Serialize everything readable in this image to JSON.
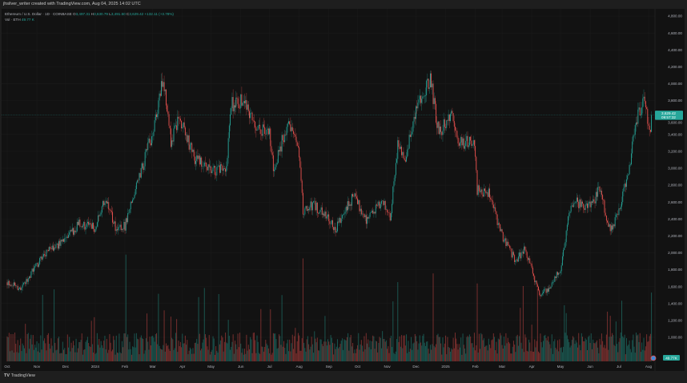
{
  "header": {
    "attribution": "jhsilver_writer created with TradingView.com, Aug 04, 2025 14:02 UTC"
  },
  "legend": {
    "symbol": "Ethereum / U.S. Dollar · 1D · COINBASE",
    "o_label": "O",
    "o": "3,497.31",
    "h_label": "H",
    "h": "3,630.79",
    "l_label": "L",
    "l": "3,491.50",
    "c_label": "C",
    "c": "3,629.42",
    "change": "+132.11 (+3.78%)",
    "vol_label": "Vol · ETH",
    "vol": "49.77 K"
  },
  "footer": {
    "logo_mark": "TV",
    "logo_text": "TradingView"
  },
  "colors": {
    "up": "#26a69a",
    "down": "#ef5350",
    "background": "#121212",
    "grid": "#1c1c1c"
  },
  "chart_data": {
    "type": "candlestick",
    "title": "Ethereum / U.S. Dollar · 1D · COINBASE",
    "ylim": [
      1000,
      4900
    ],
    "grid": true,
    "y_ticks": [
      "4,800.00",
      "4,600.00",
      "4,400.00",
      "4,200.00",
      "4,000.00",
      "3,800.00",
      "3,600.00",
      "3,400.00",
      "3,200.00",
      "3,000.00",
      "2,800.00",
      "2,600.00",
      "2,400.00",
      "2,200.00",
      "2,000.00",
      "1,800.00",
      "1,600.00",
      "1,400.00",
      "1,200.00",
      "1,000.00"
    ],
    "x_ticks": [
      {
        "label": "Oct",
        "date": "2023-10-01"
      },
      {
        "label": "Nov",
        "date": "2023-11-01"
      },
      {
        "label": "Dec",
        "date": "2023-12-01"
      },
      {
        "label": "2024",
        "date": "2024-01-01"
      },
      {
        "label": "Feb",
        "date": "2024-02-01"
      },
      {
        "label": "Mar",
        "date": "2024-03-01"
      },
      {
        "label": "Apr",
        "date": "2024-04-01"
      },
      {
        "label": "May",
        "date": "2024-05-01"
      },
      {
        "label": "Jun",
        "date": "2024-06-01"
      },
      {
        "label": "Jul",
        "date": "2024-07-01"
      },
      {
        "label": "Aug",
        "date": "2024-08-01"
      },
      {
        "label": "Sep",
        "date": "2024-09-01"
      },
      {
        "label": "Oct",
        "date": "2024-10-01"
      },
      {
        "label": "Nov",
        "date": "2024-11-01"
      },
      {
        "label": "Dec",
        "date": "2024-12-01"
      },
      {
        "label": "2025",
        "date": "2025-01-01"
      },
      {
        "label": "Feb",
        "date": "2025-02-01"
      },
      {
        "label": "Mar",
        "date": "2025-03-01"
      },
      {
        "label": "Apr",
        "date": "2025-04-01"
      },
      {
        "label": "May",
        "date": "2025-05-01"
      },
      {
        "label": "Jun",
        "date": "2025-06-01"
      },
      {
        "label": "Jul",
        "date": "2025-07-01"
      },
      {
        "label": "Aug",
        "date": "2025-08-01"
      }
    ],
    "close_path": [
      [
        "2023-10-01",
        1650
      ],
      [
        "2023-10-15",
        1580
      ],
      [
        "2023-11-01",
        1860
      ],
      [
        "2023-11-15",
        2050
      ],
      [
        "2023-12-01",
        2150
      ],
      [
        "2023-12-15",
        2350
      ],
      [
        "2024-01-01",
        2290
      ],
      [
        "2024-01-12",
        2650
      ],
      [
        "2024-01-23",
        2250
      ],
      [
        "2024-02-01",
        2320
      ],
      [
        "2024-02-15",
        2860
      ],
      [
        "2024-03-01",
        3430
      ],
      [
        "2024-03-12",
        4050
      ],
      [
        "2024-03-20",
        3300
      ],
      [
        "2024-03-28",
        3600
      ],
      [
        "2024-04-15",
        3100
      ],
      [
        "2024-05-01",
        2950
      ],
      [
        "2024-05-17",
        3000
      ],
      [
        "2024-05-22",
        3750
      ],
      [
        "2024-06-05",
        3800
      ],
      [
        "2024-06-18",
        3480
      ],
      [
        "2024-07-01",
        3430
      ],
      [
        "2024-07-05",
        3000
      ],
      [
        "2024-07-20",
        3520
      ],
      [
        "2024-08-01",
        3190
      ],
      [
        "2024-08-05",
        2480
      ],
      [
        "2024-08-15",
        2570
      ],
      [
        "2024-09-01",
        2430
      ],
      [
        "2024-09-07",
        2250
      ],
      [
        "2024-09-27",
        2680
      ],
      [
        "2024-10-10",
        2400
      ],
      [
        "2024-10-28",
        2600
      ],
      [
        "2024-11-04",
        2400
      ],
      [
        "2024-11-12",
        3300
      ],
      [
        "2024-11-20",
        3100
      ],
      [
        "2024-12-01",
        3700
      ],
      [
        "2024-12-16",
        4050
      ],
      [
        "2024-12-25",
        3400
      ],
      [
        "2025-01-06",
        3650
      ],
      [
        "2025-01-15",
        3300
      ],
      [
        "2025-01-31",
        3300
      ],
      [
        "2025-02-03",
        2750
      ],
      [
        "2025-02-15",
        2700
      ],
      [
        "2025-03-01",
        2200
      ],
      [
        "2025-03-15",
        1910
      ],
      [
        "2025-03-25",
        2050
      ],
      [
        "2025-04-01",
        1800
      ],
      [
        "2025-04-09",
        1480
      ],
      [
        "2025-04-20",
        1600
      ],
      [
        "2025-05-01",
        1810
      ],
      [
        "2025-05-09",
        2400
      ],
      [
        "2025-05-15",
        2600
      ],
      [
        "2025-06-01",
        2550
      ],
      [
        "2025-06-11",
        2750
      ],
      [
        "2025-06-22",
        2250
      ],
      [
        "2025-07-01",
        2500
      ],
      [
        "2025-07-10",
        2900
      ],
      [
        "2025-07-20",
        3600
      ],
      [
        "2025-07-28",
        3850
      ],
      [
        "2025-08-02",
        3400
      ],
      [
        "2025-08-04",
        3629.42
      ]
    ],
    "last_price_label": "3,629.42",
    "countdown_label": "09:57:32",
    "volume_label": "49.77K",
    "volume_axis_tick": "Aug"
  }
}
